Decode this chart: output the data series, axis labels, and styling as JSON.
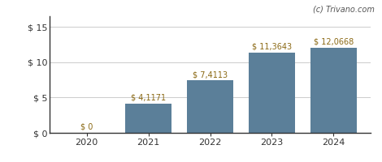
{
  "categories": [
    "2020",
    "2021",
    "2022",
    "2023",
    "2024"
  ],
  "values": [
    0,
    4.1171,
    7.4113,
    11.3643,
    12.0668
  ],
  "labels": [
    "$ 0",
    "$ 4,1171",
    "$ 7,4113",
    "$ 11,3643",
    "$ 12,0668"
  ],
  "bar_color": "#5b7f99",
  "background_color": "#ffffff",
  "ylabel_ticks": [
    "$ 0",
    "$ 5",
    "$ 10",
    "$ 15"
  ],
  "ytick_values": [
    0,
    5,
    10,
    15
  ],
  "ylim": [
    0,
    16.5
  ],
  "watermark": "(c) Trivano.com",
  "grid_color": "#cccccc",
  "label_color": "#8B6914",
  "label_fontsize": 7.0,
  "tick_fontsize": 8.0,
  "bar_width": 0.75
}
